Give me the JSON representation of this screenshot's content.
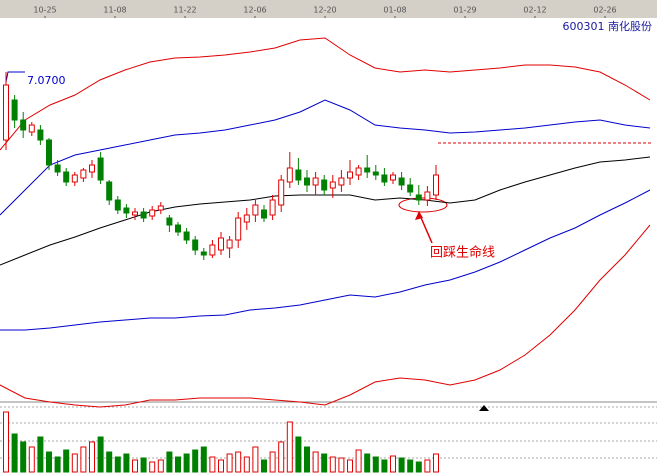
{
  "chart_data": {
    "type": "candlestick",
    "title": "600301 南化股份",
    "date_labels": [
      "10-25",
      "11-08",
      "11-22",
      "12-06",
      "12-20",
      "01-08",
      "01-29",
      "02-12",
      "02-26"
    ],
    "ylim": [
      5.38,
      7.34
    ],
    "up_color": "#e00000",
    "down_color": "#008000",
    "candles": [
      [
        6.73,
        7.005,
        7.07,
        6.68
      ],
      [
        6.93,
        6.83,
        6.955,
        6.79
      ],
      [
        6.83,
        6.78,
        6.87,
        6.74
      ],
      [
        6.77,
        6.805,
        6.82,
        6.75
      ],
      [
        6.78,
        6.73,
        6.805,
        6.705
      ],
      [
        6.73,
        6.605,
        6.74,
        6.58
      ],
      [
        6.605,
        6.57,
        6.63,
        6.55
      ],
      [
        6.57,
        6.52,
        6.59,
        6.5
      ],
      [
        6.52,
        6.555,
        6.57,
        6.5
      ],
      [
        6.54,
        6.58,
        6.59,
        6.52
      ],
      [
        6.57,
        6.605,
        6.63,
        6.54
      ],
      [
        6.64,
        6.53,
        6.67,
        6.51
      ],
      [
        6.52,
        6.43,
        6.53,
        6.405
      ],
      [
        6.43,
        6.38,
        6.45,
        6.36
      ],
      [
        6.39,
        6.365,
        6.41,
        6.34
      ],
      [
        6.355,
        6.37,
        6.39,
        6.33
      ],
      [
        6.37,
        6.34,
        6.39,
        6.32
      ],
      [
        6.35,
        6.38,
        6.4,
        6.33
      ],
      [
        6.38,
        6.4,
        6.42,
        6.36
      ],
      [
        6.34,
        6.305,
        6.355,
        6.27
      ],
      [
        6.305,
        6.27,
        6.32,
        6.25
      ],
      [
        6.27,
        6.23,
        6.29,
        6.21
      ],
      [
        6.23,
        6.18,
        6.25,
        6.155
      ],
      [
        6.17,
        6.155,
        6.19,
        6.13
      ],
      [
        6.155,
        6.205,
        6.23,
        6.14
      ],
      [
        6.18,
        6.24,
        6.27,
        6.155
      ],
      [
        6.19,
        6.23,
        6.25,
        6.14
      ],
      [
        6.23,
        6.34,
        6.37,
        6.19
      ],
      [
        6.32,
        6.355,
        6.39,
        6.28
      ],
      [
        6.355,
        6.405,
        6.43,
        6.32
      ],
      [
        6.38,
        6.34,
        6.405,
        6.32
      ],
      [
        6.355,
        6.43,
        6.455,
        6.33
      ],
      [
        6.405,
        6.53,
        6.555,
        6.37
      ],
      [
        6.52,
        6.59,
        6.67,
        6.49
      ],
      [
        6.58,
        6.53,
        6.64,
        6.505
      ],
      [
        6.54,
        6.505,
        6.58,
        6.47
      ],
      [
        6.505,
        6.54,
        6.57,
        6.455
      ],
      [
        6.53,
        6.48,
        6.555,
        6.455
      ],
      [
        6.49,
        6.52,
        6.555,
        6.44
      ],
      [
        6.505,
        6.54,
        6.58,
        6.47
      ],
      [
        6.54,
        6.57,
        6.63,
        6.505
      ],
      [
        6.555,
        6.59,
        6.605,
        6.53
      ],
      [
        6.59,
        6.57,
        6.655,
        6.54
      ],
      [
        6.57,
        6.555,
        6.605,
        6.53
      ],
      [
        6.555,
        6.52,
        6.59,
        6.5
      ],
      [
        6.53,
        6.555,
        6.57,
        6.51
      ],
      [
        6.54,
        6.505,
        6.57,
        6.48
      ],
      [
        6.505,
        6.47,
        6.54,
        6.45
      ],
      [
        6.455,
        6.43,
        6.505,
        6.405
      ],
      [
        6.43,
        6.47,
        6.5,
        6.4
      ],
      [
        6.455,
        6.555,
        6.605,
        6.43
      ]
    ],
    "volume_ylim": [
      0,
      65
    ],
    "volumes": [
      60,
      38,
      30,
      25,
      35,
      20,
      15,
      22,
      18,
      25,
      30,
      35,
      20,
      15,
      18,
      12,
      14,
      10,
      12,
      20,
      15,
      18,
      22,
      25,
      15,
      12,
      18,
      20,
      15,
      25,
      12,
      20,
      30,
      50,
      35,
      25,
      20,
      18,
      15,
      14,
      12,
      22,
      18,
      15,
      12,
      16,
      14,
      12,
      10,
      12,
      18
    ],
    "bands": [
      {
        "color": "#e00000",
        "values": [
          6.68,
          6.83,
          6.905,
          6.955,
          7.03,
          7.08,
          7.12,
          7.14,
          7.145,
          7.155,
          7.17,
          7.19,
          7.23,
          7.24,
          7.155,
          7.09,
          7.07,
          7.08,
          7.07,
          7.08,
          7.09,
          7.105,
          7.105,
          7.095,
          7.07,
          7.005,
          6.93
        ]
      },
      {
        "color": "#0000cc",
        "values": [
          6.355,
          6.48,
          6.605,
          6.655,
          6.68,
          6.705,
          6.73,
          6.755,
          6.765,
          6.78,
          6.805,
          6.83,
          6.87,
          6.93,
          6.88,
          6.805,
          6.79,
          6.78,
          6.765,
          6.77,
          6.78,
          6.79,
          6.805,
          6.82,
          6.83,
          6.805,
          6.79
        ]
      },
      {
        "color": "#000000",
        "values": [
          6.105,
          6.155,
          6.205,
          6.245,
          6.29,
          6.33,
          6.37,
          6.395,
          6.41,
          6.42,
          6.43,
          6.45,
          6.455,
          6.455,
          6.455,
          6.43,
          6.44,
          6.43,
          6.415,
          6.43,
          6.48,
          6.52,
          6.555,
          6.59,
          6.62,
          6.63,
          6.645
        ]
      },
      {
        "color": "#0000cc",
        "values": [
          5.78,
          5.78,
          5.79,
          5.805,
          5.82,
          5.83,
          5.84,
          5.84,
          5.85,
          5.855,
          5.88,
          5.89,
          5.905,
          5.93,
          5.955,
          5.945,
          5.97,
          6.005,
          6.03,
          6.07,
          6.12,
          6.18,
          6.24,
          6.29,
          6.355,
          6.415,
          6.48
        ]
      },
      {
        "color": "#e00000",
        "values": [
          5.505,
          5.44,
          5.42,
          5.405,
          5.395,
          5.405,
          5.43,
          5.43,
          5.44,
          5.44,
          5.44,
          5.43,
          5.42,
          5.405,
          5.455,
          5.52,
          5.54,
          5.53,
          5.505,
          5.53,
          5.58,
          5.655,
          5.755,
          5.88,
          6.03,
          6.155,
          6.305
        ]
      }
    ],
    "max_label": {
      "value": 7.07,
      "label": "7.0700"
    },
    "reference_level": 6.715,
    "annotation": "回踩生命线"
  }
}
